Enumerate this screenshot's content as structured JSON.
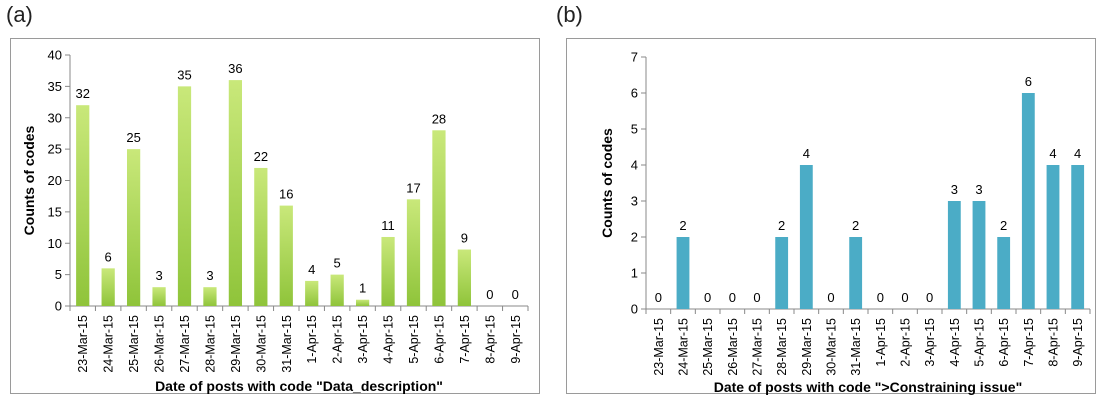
{
  "panels": [
    {
      "label": "(a)"
    },
    {
      "label": "(b)"
    }
  ],
  "chart_data": [
    {
      "type": "bar",
      "title": "",
      "xlabel": "Date of posts with code \"Data_description\"",
      "ylabel": "Counts of codes",
      "ylim": [
        0,
        40
      ],
      "yticks": [
        "0",
        "5",
        "10",
        "15",
        "20",
        "25",
        "30",
        "35",
        "40"
      ],
      "categories": [
        "23-Mar-15",
        "24-Mar-15",
        "25-Mar-15",
        "26-Mar-15",
        "27-Mar-15",
        "28-Mar-15",
        "29-Mar-15",
        "30-Mar-15",
        "31-Mar-15",
        "1-Apr-15",
        "2-Apr-15",
        "3-Apr-15",
        "4-Apr-15",
        "5-Apr-15",
        "6-Apr-15",
        "7-Apr-15",
        "8-Apr-15",
        "9-Apr-15"
      ],
      "values": [
        32,
        6,
        25,
        3,
        35,
        3,
        36,
        22,
        16,
        4,
        5,
        1,
        11,
        17,
        28,
        9,
        0,
        0
      ],
      "grid": false,
      "bar_color": "#c9e87a",
      "bar_color_bottom": "#8fc43a"
    },
    {
      "type": "bar",
      "title": "",
      "xlabel": "Date of posts with code \">Constraining issue\"",
      "ylabel": "Counts of codes",
      "ylim": [
        0,
        7
      ],
      "yticks": [
        "0",
        "1",
        "2",
        "3",
        "4",
        "5",
        "6",
        "7"
      ],
      "categories": [
        "23-Mar-15",
        "24-Mar-15",
        "25-Mar-15",
        "26-Mar-15",
        "27-Mar-15",
        "28-Mar-15",
        "29-Mar-15",
        "30-Mar-15",
        "31-Mar-15",
        "1-Apr-15",
        "2-Apr-15",
        "3-Apr-15",
        "4-Apr-15",
        "5-Apr-15",
        "6-Apr-15",
        "7-Apr-15",
        "8-Apr-15",
        "9-Apr-15"
      ],
      "values": [
        0,
        2,
        0,
        0,
        0,
        2,
        4,
        0,
        2,
        0,
        0,
        0,
        3,
        3,
        2,
        6,
        4,
        4
      ],
      "grid": false,
      "bar_color": "#4bacc6"
    }
  ]
}
